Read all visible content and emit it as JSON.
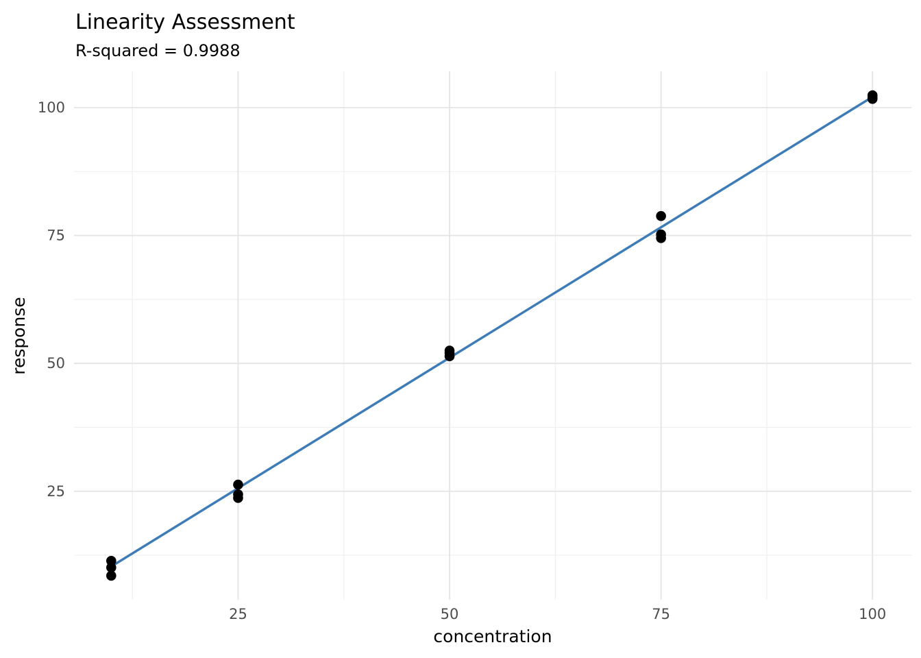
{
  "chart_data": {
    "type": "scatter",
    "title": "Linearity Assessment",
    "subtitle": "R-squared = 0.9988",
    "xlabel": "concentration",
    "ylabel": "response",
    "x_ticks": [
      25,
      50,
      75,
      100
    ],
    "y_ticks": [
      25,
      50,
      75,
      100
    ],
    "x_minor_ticks": [
      12.5,
      37.5,
      62.5,
      87.5
    ],
    "y_minor_ticks": [
      12.5,
      37.5,
      62.5,
      87.5
    ],
    "xlim": [
      5.6,
      104.6
    ],
    "ylim": [
      3.8,
      107.1
    ],
    "grid": true,
    "legend": "none",
    "points": [
      {
        "x": 10,
        "y": 11.4
      },
      {
        "x": 10,
        "y": 10.1
      },
      {
        "x": 10,
        "y": 8.5
      },
      {
        "x": 25,
        "y": 26.3
      },
      {
        "x": 25,
        "y": 24.4
      },
      {
        "x": 25,
        "y": 23.7
      },
      {
        "x": 50,
        "y": 52.5
      },
      {
        "x": 50,
        "y": 52.0
      },
      {
        "x": 50,
        "y": 51.4
      },
      {
        "x": 75,
        "y": 78.8
      },
      {
        "x": 75,
        "y": 75.2
      },
      {
        "x": 75,
        "y": 74.5
      },
      {
        "x": 100,
        "y": 102.4
      },
      {
        "x": 100,
        "y": 102.0
      },
      {
        "x": 100,
        "y": 101.7
      }
    ],
    "regression_line": {
      "x1": 10,
      "y1": 10.3,
      "x2": 100,
      "y2": 102.1
    },
    "colors": {
      "background": "#ffffff",
      "grid_major": "#e4e4e4",
      "grid_minor": "#efefef",
      "point": "#000000",
      "line": "#3e7cb8",
      "tick_label": "#4d4d4d",
      "text": "#000000"
    },
    "point_radius": 7.3,
    "line_width": 3.5
  }
}
